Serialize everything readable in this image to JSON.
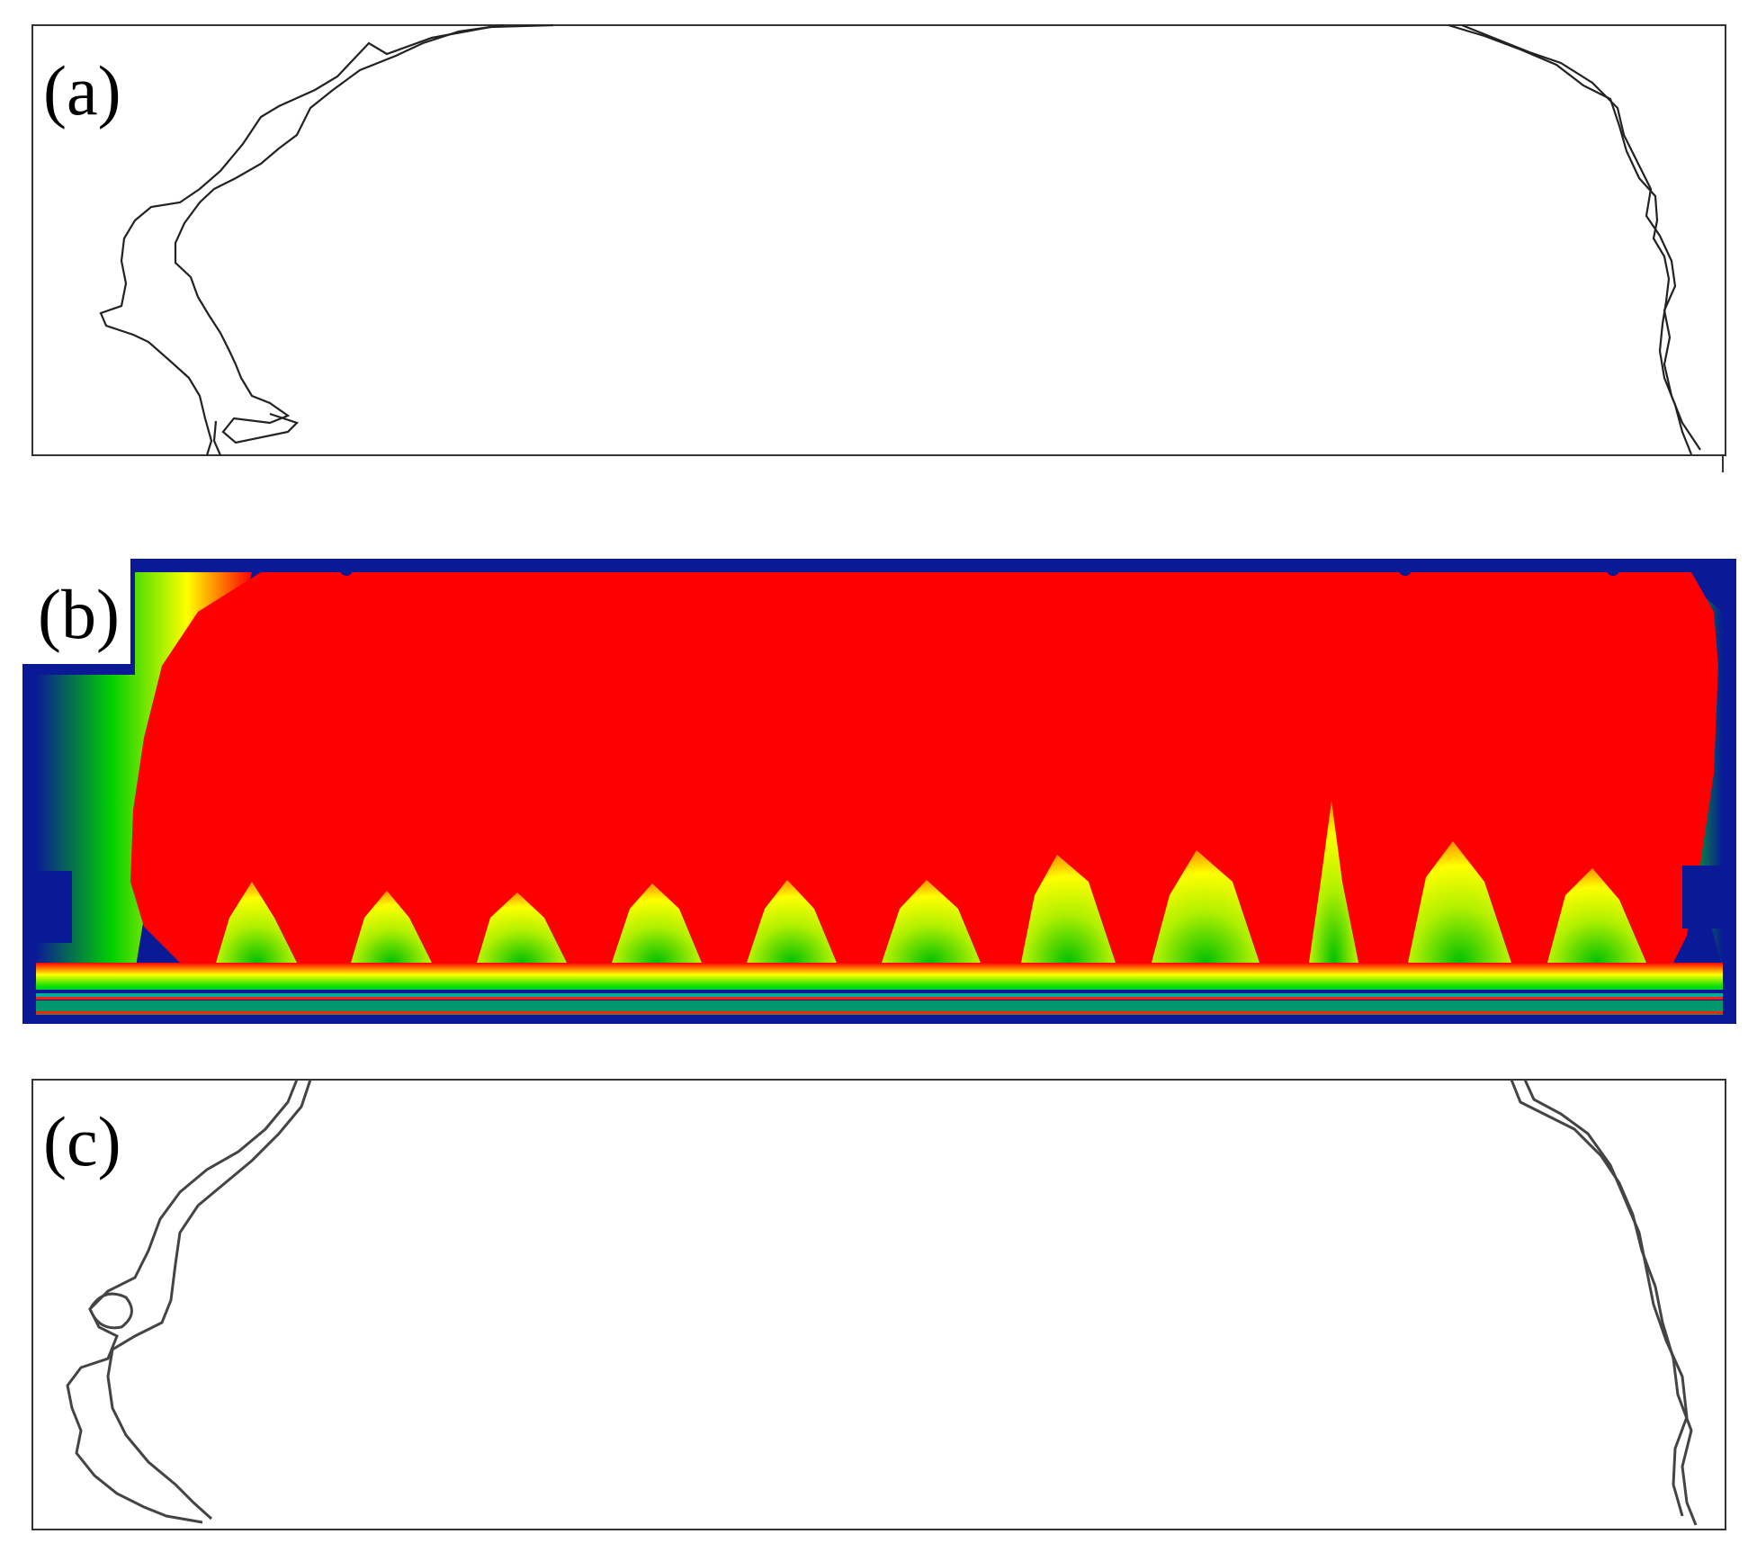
{
  "panels": [
    {
      "label": "(a)"
    },
    {
      "label": "(b)"
    },
    {
      "label": "(c)"
    }
  ],
  "colors": {
    "outline": "#222222",
    "frame": "#333333",
    "heatmap_background": "#0a1a96",
    "heatmap_high": "#ff0000",
    "heatmap_mid": "#ffff00",
    "heatmap_low": "#00e000"
  }
}
